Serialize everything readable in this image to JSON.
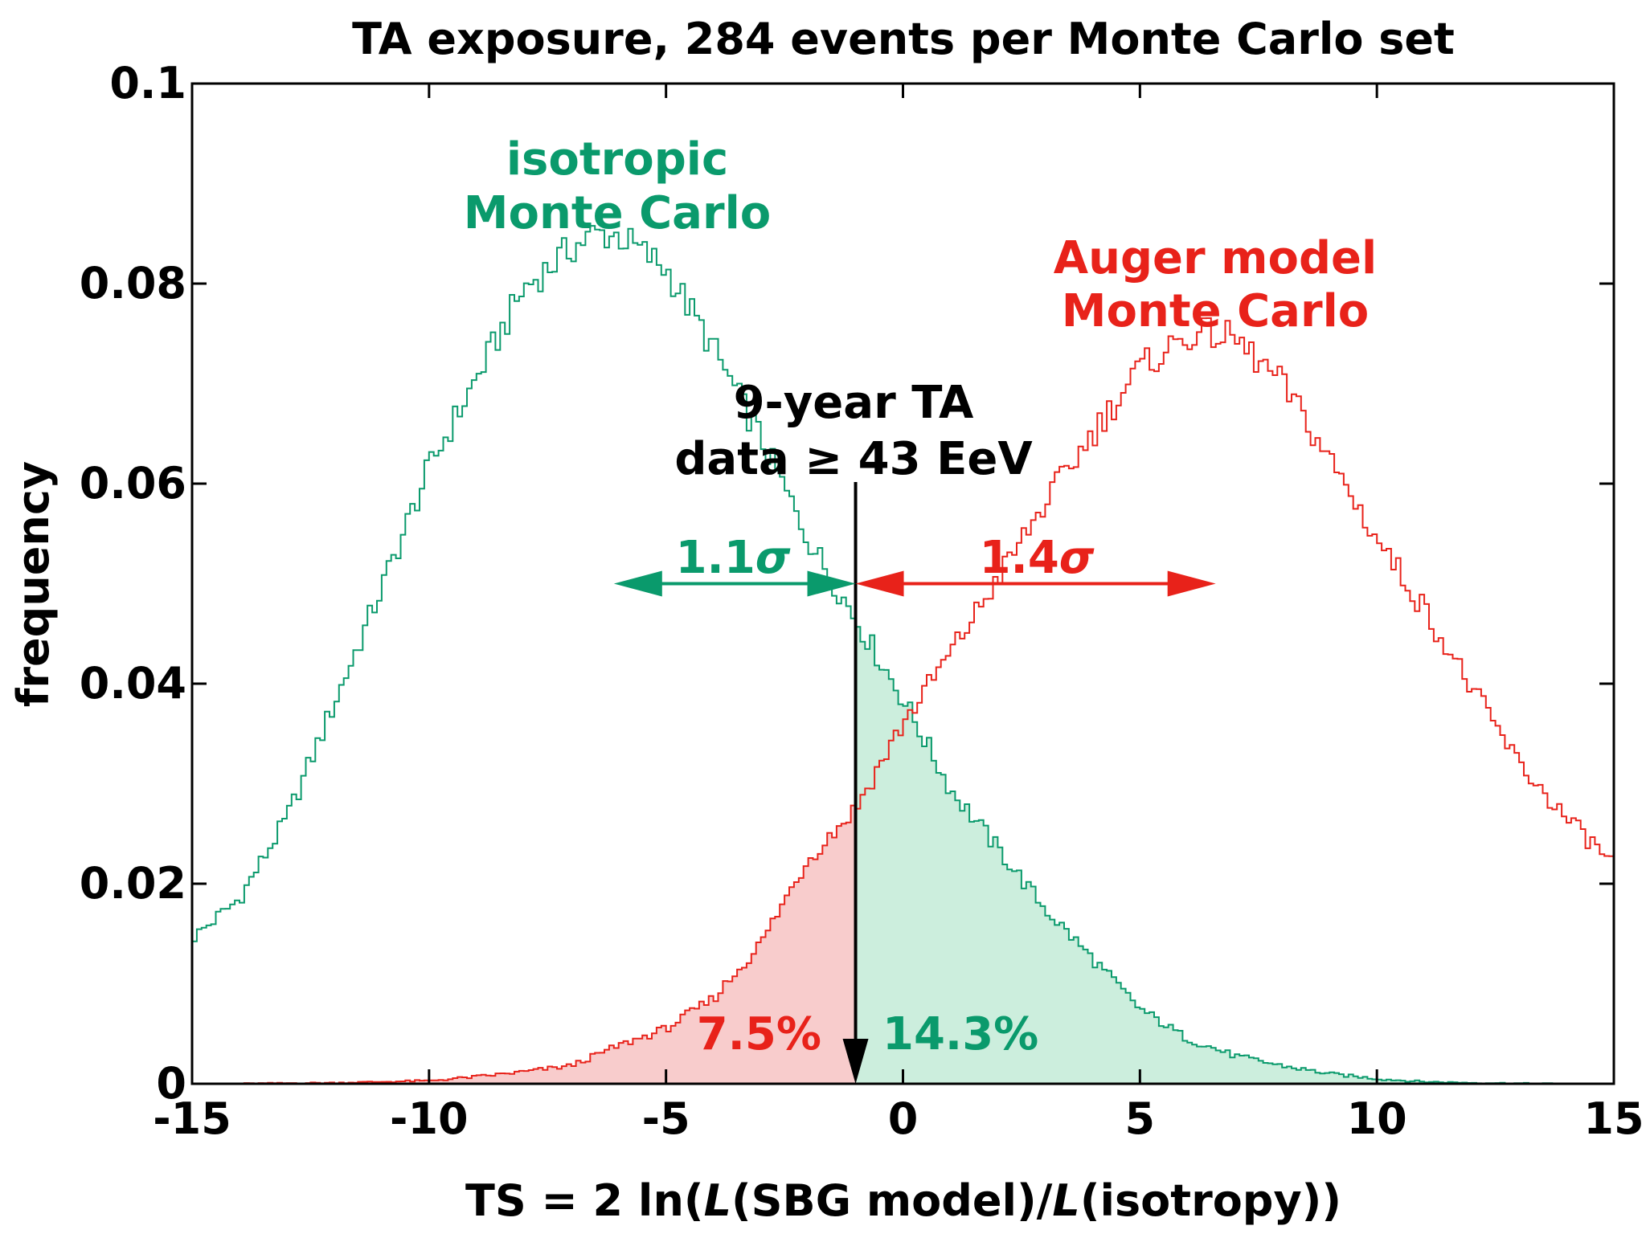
{
  "chart_data": {
    "type": "histogram",
    "title": "TA exposure, 284 events per Monte Carlo set",
    "xlabel": "TS = 2 ln(L(SBG model)/L(isotropy))",
    "xlabel_parts": {
      "a": "TS = 2 ln(",
      "b": "L",
      "c": "(SBG model)/",
      "d": "L",
      "e": "(isotropy))"
    },
    "ylabel": "frequency",
    "xlim": [
      -15,
      15
    ],
    "ylim": [
      0,
      0.1
    ],
    "x_ticks": [
      -15,
      -10,
      -5,
      0,
      5,
      10,
      15
    ],
    "x_tick_labels": [
      "-15",
      "-10",
      "-5",
      "0",
      "5",
      "10",
      "15"
    ],
    "y_ticks": [
      0,
      0.02,
      0.04,
      0.06,
      0.08,
      0.1
    ],
    "y_tick_labels": [
      "0",
      "0.02",
      "0.04",
      "0.06",
      "0.08",
      "0.1"
    ],
    "observed_ts": -1.0,
    "arrow_y": 0.05,
    "series": [
      {
        "name": "isotropic Monte Carlo",
        "label_line1": "isotropic",
        "label_line2": "Monte Carlo",
        "color": "#0a9a6c",
        "fill_color": "#cceedd",
        "shade": "right_of_observed",
        "points": [
          [
            -15,
            0.0145
          ],
          [
            -14,
            0.0185
          ],
          [
            -13,
            0.0265
          ],
          [
            -12,
            0.038
          ],
          [
            -11,
            0.0495
          ],
          [
            -10,
            0.0615
          ],
          [
            -9,
            0.0705
          ],
          [
            -8,
            0.0795
          ],
          [
            -7,
            0.0835
          ],
          [
            -6.5,
            0.085
          ],
          [
            -6,
            0.0848
          ],
          [
            -5,
            0.0815
          ],
          [
            -4,
            0.0735
          ],
          [
            -3,
            0.0645
          ],
          [
            -2,
            0.0545
          ],
          [
            -1,
            0.0465
          ],
          [
            0,
            0.0385
          ],
          [
            1,
            0.0295
          ],
          [
            2,
            0.0235
          ],
          [
            3,
            0.0175
          ],
          [
            4,
            0.0125
          ],
          [
            5,
            0.0075
          ],
          [
            6,
            0.0045
          ],
          [
            7,
            0.0028
          ],
          [
            8,
            0.0018
          ],
          [
            9,
            0.001
          ],
          [
            10,
            0.0005
          ],
          [
            11,
            0.0002
          ],
          [
            12,
            0.0001
          ],
          [
            13,
            5e-05
          ],
          [
            15,
            0.0
          ]
        ]
      },
      {
        "name": "Auger model Monte Carlo",
        "label_line1": "Auger model",
        "label_line2": "Monte Carlo",
        "color": "#e8221a",
        "fill_color": "#f8cccc",
        "shade": "left_of_observed",
        "points": [
          [
            -15,
            0.0
          ],
          [
            -12,
            0.0001
          ],
          [
            -10,
            0.0003
          ],
          [
            -9,
            0.0007
          ],
          [
            -8,
            0.0012
          ],
          [
            -7,
            0.0018
          ],
          [
            -6,
            0.0038
          ],
          [
            -5,
            0.0055
          ],
          [
            -4,
            0.0085
          ],
          [
            -3,
            0.014
          ],
          [
            -2,
            0.0225
          ],
          [
            -1,
            0.0275
          ],
          [
            0,
            0.036
          ],
          [
            1,
            0.043
          ],
          [
            2,
            0.0505
          ],
          [
            3,
            0.058
          ],
          [
            4,
            0.065
          ],
          [
            5,
            0.0715
          ],
          [
            6,
            0.0748
          ],
          [
            6.5,
            0.075
          ],
          [
            7,
            0.0745
          ],
          [
            8,
            0.07
          ],
          [
            9,
            0.0625
          ],
          [
            10,
            0.0545
          ],
          [
            11,
            0.0475
          ],
          [
            12,
            0.0395
          ],
          [
            13,
            0.032
          ],
          [
            14,
            0.0265
          ],
          [
            15,
            0.022
          ]
        ]
      }
    ],
    "annotations": {
      "data_line1": "9-year TA",
      "data_line2": "data ≥ 43 EeV",
      "sigma_iso_num": "1.1",
      "sigma_auger_num": "1.4",
      "sigma_symbol": "σ",
      "pct_auger": "7.5%",
      "pct_iso": "14.3%"
    }
  }
}
